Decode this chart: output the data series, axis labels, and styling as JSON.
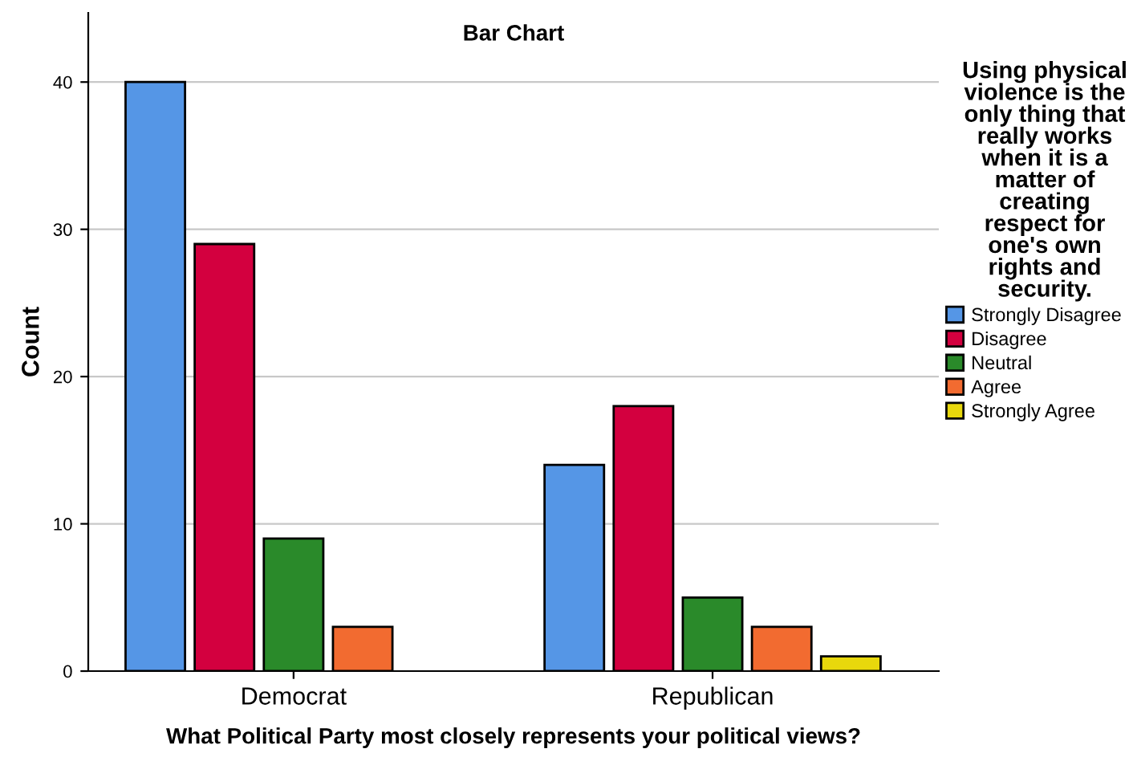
{
  "chart_data": {
    "type": "bar",
    "title": "Bar Chart",
    "xlabel": "What Political Party most closely represents your political views?",
    "ylabel": "Count",
    "legend_title": "Using physical violence is the only thing that really works when it is a matter of creating respect for one's own rights and security.",
    "categories": [
      "Democrat",
      "Republican"
    ],
    "series": [
      {
        "name": "Strongly Disagree",
        "color": "#5596e6",
        "values": [
          40,
          14
        ]
      },
      {
        "name": "Disagree",
        "color": "#d3003f",
        "values": [
          29,
          18
        ]
      },
      {
        "name": "Neutral",
        "color": "#2a8a2a",
        "values": [
          9,
          5
        ]
      },
      {
        "name": "Agree",
        "color": "#f26b30",
        "values": [
          3,
          3
        ]
      },
      {
        "name": "Strongly Agree",
        "color": "#e8d80c",
        "values": [
          null,
          1
        ]
      }
    ],
    "ylim": [
      0,
      44.7
    ],
    "yticks": [
      0,
      10,
      20,
      30,
      40
    ],
    "grid": "y",
    "legend": "right"
  }
}
